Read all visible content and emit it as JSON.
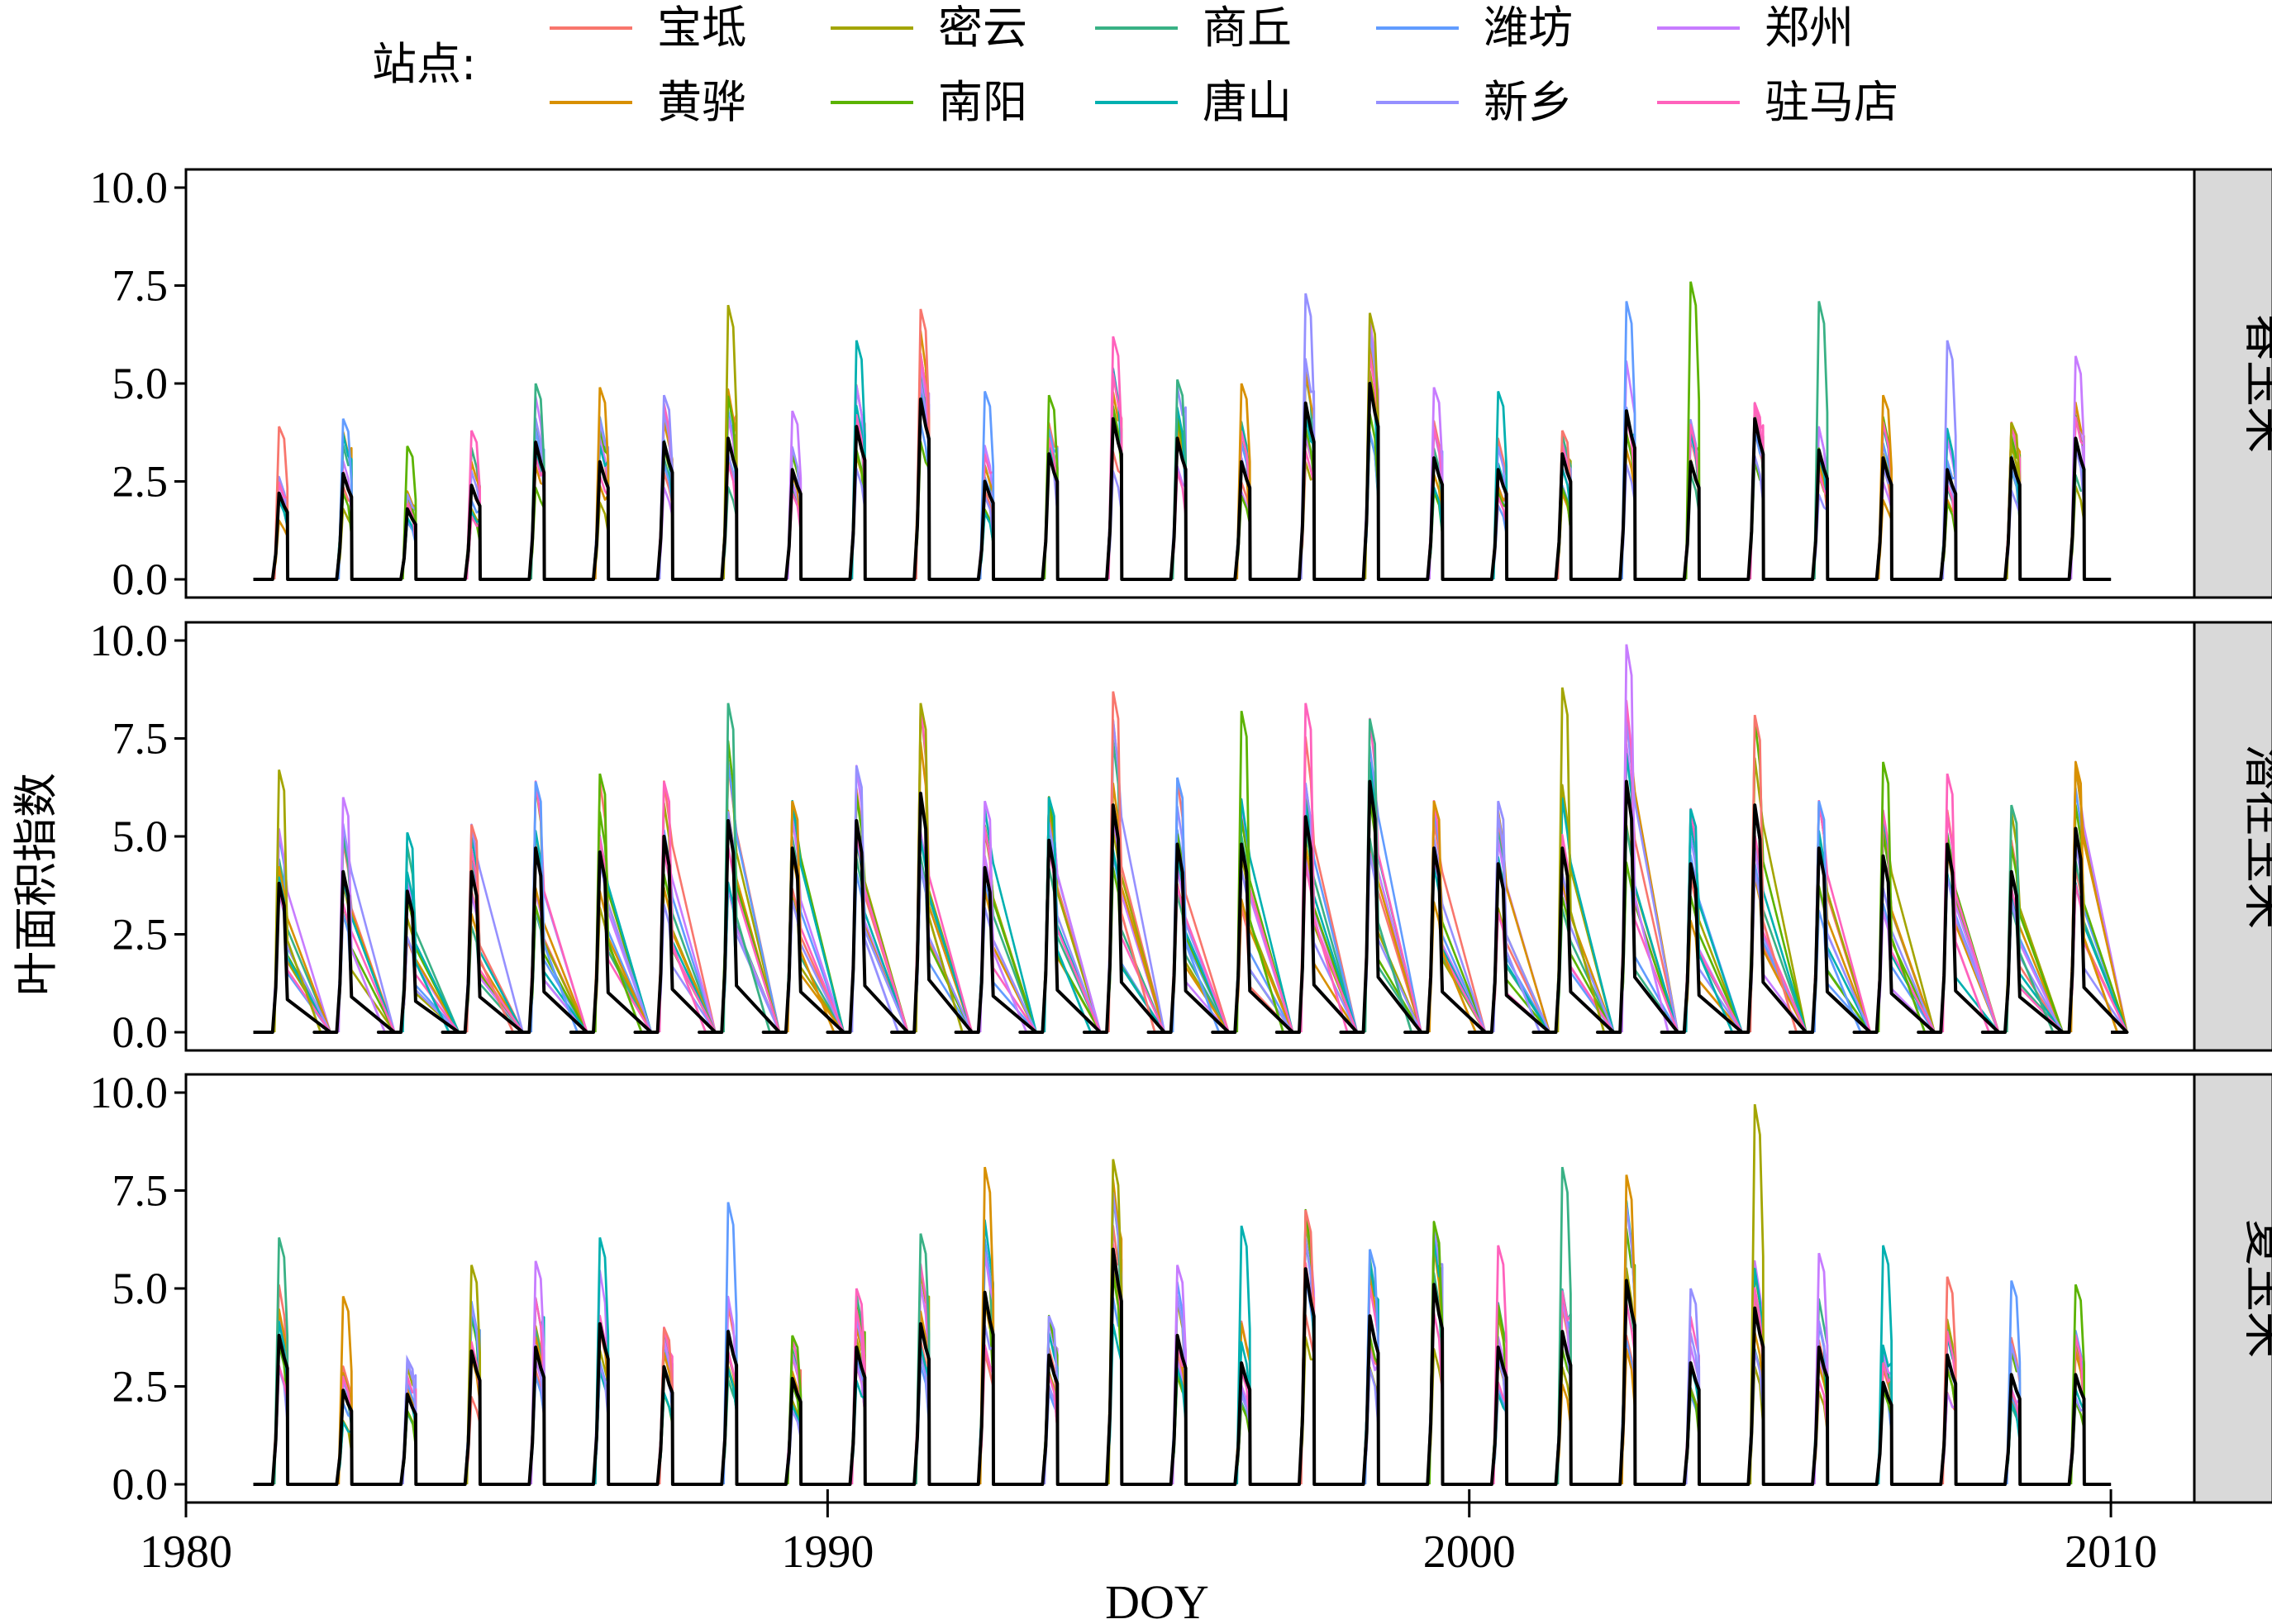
{
  "chart_data": {
    "type": "line",
    "xlabel": "DOY",
    "ylabel": "叶面积指数",
    "xlim": [
      1980,
      2011.3
    ],
    "x_ticks": [
      1980,
      1990,
      2000,
      2010
    ],
    "x_tick_labels": [
      "1980",
      "1990",
      "2000",
      "2010"
    ],
    "ylim": [
      0,
      10
    ],
    "y_ticks": [
      0,
      2.5,
      5,
      7.5,
      10
    ],
    "y_tick_labels": [
      "0.0",
      "2.5",
      "5.0",
      "7.5",
      "10.0"
    ],
    "grid": false,
    "legend": {
      "title": "站点:",
      "position": "top",
      "entries": [
        {
          "name": "宝坻",
          "color": "#F8766D"
        },
        {
          "name": "密云",
          "color": "#A3A500"
        },
        {
          "name": "商丘",
          "color": "#39B185"
        },
        {
          "name": "潍坊",
          "color": "#619CFF"
        },
        {
          "name": "郑州",
          "color": "#C77CFF"
        },
        {
          "name": "黄骅",
          "color": "#D89000"
        },
        {
          "name": "南阳",
          "color": "#5BB300"
        },
        {
          "name": "唐山",
          "color": "#00B0B0"
        },
        {
          "name": "新乡",
          "color": "#9590FF"
        },
        {
          "name": "驻马店",
          "color": "#FF62BC"
        }
      ]
    },
    "mean_line_color": "#000000",
    "years": [
      1981,
      1982,
      1983,
      1984,
      1985,
      1986,
      1987,
      1988,
      1989,
      1990,
      1991,
      1992,
      1993,
      1994,
      1995,
      1996,
      1997,
      1998,
      1999,
      2000,
      2001,
      2002,
      2003,
      2004,
      2005,
      2006,
      2007,
      2008,
      2009
    ],
    "panels": [
      {
        "strip": "春玉米",
        "mean_peak": [
          2.2,
          2.7,
          1.8,
          2.4,
          3.5,
          3.0,
          3.5,
          3.6,
          2.8,
          3.9,
          4.6,
          2.5,
          3.2,
          4.1,
          3.6,
          3.0,
          4.5,
          5.0,
          3.1,
          2.8,
          3.2,
          4.3,
          3.0,
          4.1,
          3.3,
          3.1,
          2.8,
          3.1,
          3.6
        ],
        "max_peak": [
          3.9,
          4.1,
          3.4,
          3.8,
          5.0,
          4.9,
          4.7,
          7.0,
          4.3,
          6.1,
          6.9,
          4.8,
          4.7,
          6.2,
          5.1,
          5.0,
          7.3,
          6.8,
          4.9,
          4.8,
          3.8,
          7.1,
          7.6,
          4.5,
          7.1,
          4.7,
          6.1,
          4.0,
          5.7
        ]
      },
      {
        "strip": "潜在玉米",
        "mean_peak": [
          3.8,
          4.1,
          3.6,
          4.1,
          4.7,
          4.6,
          5.0,
          5.4,
          4.7,
          5.4,
          6.1,
          4.2,
          4.9,
          5.8,
          4.8,
          4.8,
          5.5,
          6.4,
          4.7,
          4.3,
          4.7,
          6.4,
          4.3,
          5.8,
          4.7,
          4.5,
          4.8,
          4.1,
          5.2
        ],
        "max_peak": [
          6.7,
          6.0,
          5.1,
          5.3,
          6.4,
          6.6,
          6.4,
          8.4,
          5.9,
          6.8,
          8.4,
          5.9,
          6.0,
          8.7,
          6.5,
          8.2,
          8.4,
          8.0,
          5.9,
          5.9,
          8.8,
          9.9,
          5.7,
          8.1,
          5.9,
          6.9,
          6.6,
          5.8,
          6.9
        ]
      },
      {
        "strip": "夏玉米",
        "mean_peak": [
          3.8,
          2.4,
          2.3,
          3.4,
          3.5,
          4.1,
          3.0,
          3.9,
          2.7,
          3.5,
          4.1,
          4.9,
          3.3,
          6.0,
          3.8,
          3.1,
          5.5,
          4.3,
          5.1,
          3.5,
          3.9,
          5.2,
          3.1,
          4.5,
          3.5,
          2.6,
          3.3,
          2.8,
          2.8
        ],
        "max_peak": [
          6.3,
          4.8,
          3.2,
          5.6,
          5.7,
          6.3,
          4.0,
          7.2,
          3.8,
          5.0,
          6.4,
          8.1,
          4.3,
          8.3,
          5.6,
          6.6,
          7.0,
          6.0,
          6.7,
          6.1,
          8.1,
          7.9,
          5.0,
          9.7,
          5.9,
          6.1,
          5.3,
          5.2,
          5.1
        ]
      }
    ]
  }
}
